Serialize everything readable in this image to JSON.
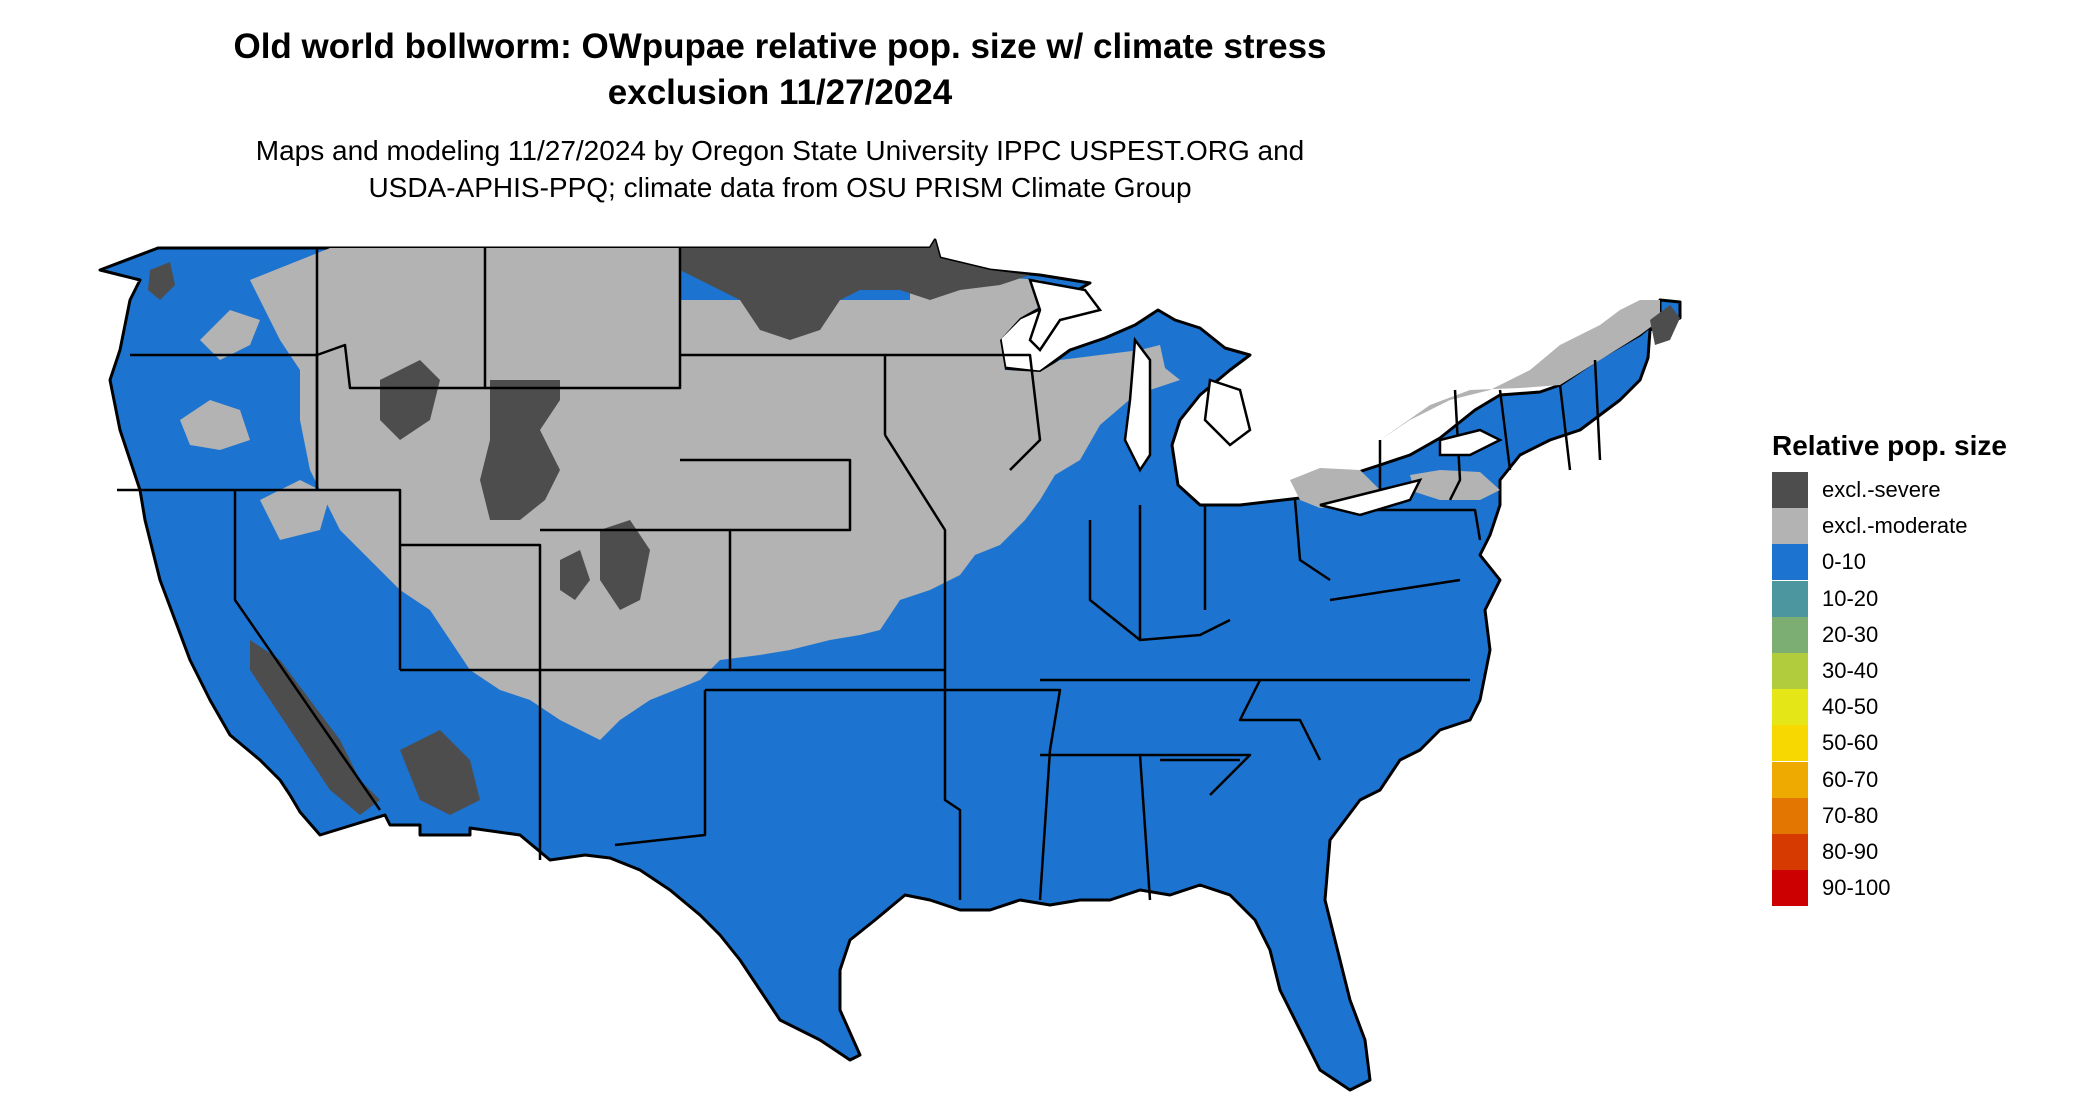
{
  "title": {
    "line1": "Old world bollworm: OWpupae relative pop. size w/ climate stress",
    "line2": "exclusion 11/27/2024"
  },
  "subtitle": {
    "line1": "Maps and modeling 11/27/2024 by Oregon State University IPPC USPEST.ORG and",
    "line2": "USDA-APHIS-PPQ; climate data from OSU PRISM Climate Group"
  },
  "legend": {
    "title": "Relative pop. size",
    "items": [
      {
        "label": "excl.-severe",
        "color": "#4d4d4d"
      },
      {
        "label": "excl.-moderate",
        "color": "#b3b3b3"
      },
      {
        "label": "0-10",
        "color": "#1c74d0"
      },
      {
        "label": "10-20",
        "color": "#4c96a0"
      },
      {
        "label": "20-30",
        "color": "#7cae74"
      },
      {
        "label": "30-40",
        "color": "#b1cc3c"
      },
      {
        "label": "40-50",
        "color": "#e4e617"
      },
      {
        "label": "50-60",
        "color": "#f7d800"
      },
      {
        "label": "60-70",
        "color": "#eeaa00"
      },
      {
        "label": "70-80",
        "color": "#e27600"
      },
      {
        "label": "80-90",
        "color": "#d63a00"
      },
      {
        "label": "90-100",
        "color": "#cc0000"
      }
    ]
  },
  "map": {
    "colors": {
      "severe": "#4d4d4d",
      "moderate": "#b3b3b3",
      "low": "#1c74d0",
      "border": "#000000"
    }
  }
}
